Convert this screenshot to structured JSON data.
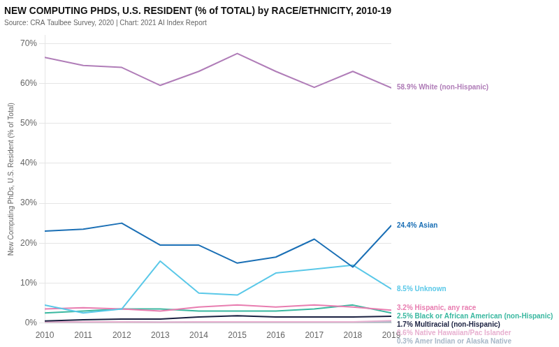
{
  "chart_data": {
    "type": "line",
    "title": "NEW COMPUTING PHDS, U.S. RESIDENT (% of TOTAL) by RACE/ETHNICITY, 2010-19",
    "subtitle": "Source: CRA Taulbee Survey, 2020 | Chart: 2021 AI Index Report",
    "ylabel": "New Computing PhDs, U.S. Resident (% of Total)",
    "x": [
      2010,
      2011,
      2012,
      2013,
      2014,
      2015,
      2016,
      2017,
      2018,
      2019
    ],
    "series": [
      {
        "name": "58.9% White (non-Hispanic)",
        "color": "#b07db8",
        "values": [
          66.5,
          64.5,
          64.0,
          59.5,
          63.0,
          67.5,
          63.0,
          59.0,
          63.0,
          58.9
        ]
      },
      {
        "name": "24.4% Asian",
        "color": "#1a6fb5",
        "values": [
          23.0,
          23.5,
          25.0,
          19.5,
          19.5,
          15.0,
          16.5,
          21.0,
          14.0,
          24.4
        ]
      },
      {
        "name": "8.5% Unknown",
        "color": "#5ac8e8",
        "values": [
          4.5,
          2.5,
          3.5,
          15.5,
          7.5,
          7.0,
          12.5,
          13.5,
          14.5,
          8.5
        ]
      },
      {
        "name": "3.2% Hispanic, any race",
        "color": "#e87db0",
        "values": [
          3.5,
          3.8,
          3.5,
          3.0,
          4.0,
          4.5,
          4.0,
          4.5,
          4.0,
          3.2
        ]
      },
      {
        "name": "2.5% Black or African American (non-Hispanic)",
        "color": "#3ab8a0",
        "values": [
          2.5,
          3.0,
          3.5,
          3.5,
          3.0,
          3.0,
          3.0,
          3.5,
          4.5,
          2.5
        ]
      },
      {
        "name": "1.7% Multiracial (non-Hispanic)",
        "color": "#1a2040",
        "values": [
          0.5,
          0.8,
          1.0,
          1.0,
          1.5,
          1.8,
          1.5,
          1.5,
          1.5,
          1.7
        ]
      },
      {
        "name": "0.6% Native Hawaiian/Pac Islander",
        "color": "#e8b0d0",
        "values": [
          0.3,
          0.3,
          0.3,
          0.2,
          0.3,
          0.3,
          0.3,
          0.3,
          0.3,
          0.6
        ]
      },
      {
        "name": "0.3% Amer Indian or Alaska Native",
        "color": "#a8b8c8",
        "values": [
          0.2,
          0.2,
          0.3,
          0.2,
          0.2,
          0.2,
          0.2,
          0.2,
          0.2,
          0.3
        ]
      }
    ],
    "xlim": [
      2010,
      2019
    ],
    "xticks": [
      2010,
      2011,
      2012,
      2013,
      2014,
      2015,
      2016,
      2017,
      2018,
      2019
    ],
    "ylim": [
      0,
      72
    ],
    "yticks": [
      {
        "value": 0,
        "label": "0%"
      },
      {
        "value": 10,
        "label": "10%"
      },
      {
        "value": 20,
        "label": "20%"
      },
      {
        "value": 30,
        "label": "30%"
      },
      {
        "value": 40,
        "label": "40%"
      },
      {
        "value": 50,
        "label": "50%"
      },
      {
        "value": 60,
        "label": "60%"
      },
      {
        "value": 70,
        "label": "70%"
      }
    ],
    "grid": "y"
  }
}
